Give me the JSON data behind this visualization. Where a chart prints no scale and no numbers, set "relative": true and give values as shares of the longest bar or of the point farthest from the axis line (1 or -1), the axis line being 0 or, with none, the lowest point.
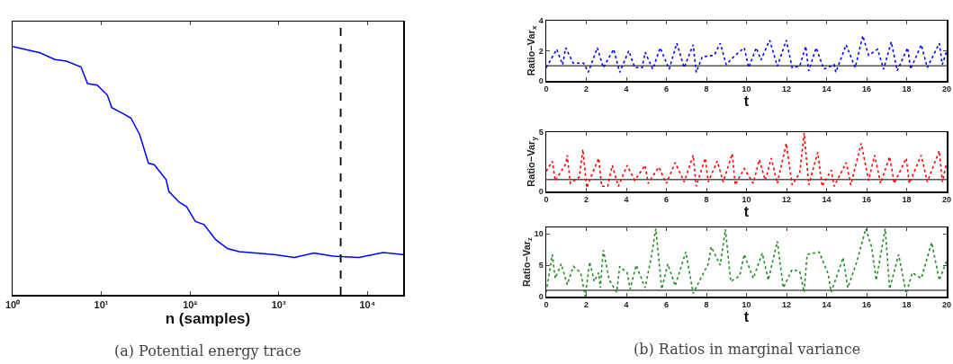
{
  "chart_data": [
    {
      "type": "line",
      "relative": true,
      "xlabel": "n (samples)",
      "annotations": [
        "(a) Potential energy trace"
      ],
      "log": "x",
      "grid": false,
      "marker": "none",
      "line_style": "solid",
      "tick_labels": "x",
      "xlim": [
        1,
        25300
      ],
      "xticks": [
        {
          "value": 1,
          "label": "10⁰"
        },
        {
          "value": 10,
          "label": "10¹"
        },
        {
          "value": 100,
          "label": "10²"
        },
        {
          "value": 1000,
          "label": "10³"
        },
        {
          "value": 10000,
          "label": "10⁴"
        }
      ],
      "ref_lines": [
        {
          "axis": "x",
          "value": 5000,
          "label": null,
          "color": "#000000",
          "line_style": "dashed"
        }
      ],
      "series": [
        {
          "color": "#0000ff",
          "x": [
            1,
            2.04,
            3,
            4.05,
            5.9,
            7,
            9,
            11.7,
            13.1,
            17.8,
            21.6,
            27.1,
            34,
            39.5,
            53.7,
            57.8,
            75.5,
            91.2,
            115,
            144,
            195,
            265,
            358,
            892,
            1500,
            2500,
            4080,
            8000,
            15000,
            25300
          ],
          "values": [
            1,
            0.974,
            0.947,
            0.941,
            0.917,
            0.85,
            0.844,
            0.804,
            0.754,
            0.729,
            0.711,
            0.645,
            0.53,
            0.524,
            0.464,
            0.416,
            0.373,
            0.355,
            0.295,
            0.283,
            0.222,
            0.186,
            0.174,
            0.162,
            0.15,
            0.168,
            0.156,
            0.15,
            0.17,
            0.162
          ]
        }
      ]
    },
    {
      "type": "line",
      "xlabel": "t",
      "ylabel": "Ratio−Var$_{x}$",
      "grid": false,
      "marker": "none",
      "line_style": "dotted",
      "xlim": [
        0,
        20
      ],
      "xticks": [
        0,
        2,
        4,
        6,
        8,
        10,
        12,
        14,
        16,
        18,
        20
      ],
      "ylim": [
        0,
        4
      ],
      "yticks": [
        0,
        2,
        4
      ],
      "ref_lines": [
        {
          "axis": "y",
          "value": 1,
          "label": null,
          "color": "#555555",
          "line_style": "solid"
        }
      ],
      "series": [
        {
          "color": "#0000ff",
          "x": [
            0,
            0.52,
            0.82,
            0.97,
            1.35,
            1.87,
            2.1,
            2.55,
            2.85,
            3.37,
            3.67,
            4.12,
            4.42,
            4.79,
            4.94,
            5.32,
            5.69,
            6.14,
            6.52,
            6.89,
            7.34,
            7.49,
            7.79,
            8.39,
            8.69,
            8.99,
            9.36,
            9.89,
            10.11,
            10.49,
            10.72,
            11.16,
            11.54,
            11.99,
            12.28,
            12.66,
            12.96,
            13.11,
            13.48,
            13.86,
            14.38,
            14.46,
            14.98,
            15.43,
            15.81,
            16.1,
            16.55,
            16.85,
            17.23,
            17.53,
            18.05,
            18.2,
            18.73,
            19.03,
            19.63,
            19.78,
            20
          ],
          "values": [
            0.88,
            2.1,
            1.08,
            2.2,
            1.18,
            1.18,
            0.57,
            2.2,
            0.88,
            2.1,
            0.57,
            2,
            0.88,
            0.88,
            1.9,
            0.78,
            2.2,
            0.78,
            2.5,
            0.88,
            2.4,
            0.57,
            1.6,
            1.7,
            2.5,
            1.08,
            1.6,
            2.2,
            0.88,
            2.2,
            1.39,
            2.7,
            0.98,
            2.7,
            0.88,
            0.98,
            2.3,
            0.67,
            2.2,
            0.78,
            1.08,
            0.57,
            2.4,
            0.88,
            3,
            1.7,
            2.1,
            0.78,
            2.6,
            0.67,
            2.2,
            0.78,
            2.4,
            0.88,
            2.5,
            1.08,
            2
          ]
        }
      ]
    },
    {
      "type": "line",
      "xlabel": "t",
      "ylabel": "Ratio−Var$_{y}$",
      "grid": false,
      "marker": "none",
      "line_style": "dotted",
      "xlim": [
        0,
        20
      ],
      "xticks": [
        0,
        2,
        4,
        6,
        8,
        10,
        12,
        14,
        16,
        18,
        20
      ],
      "ylim": [
        0,
        5
      ],
      "yticks": [
        0,
        5
      ],
      "ref_lines": [
        {
          "axis": "y",
          "value": 1,
          "label": null,
          "color": "#555555",
          "line_style": "solid"
        }
      ],
      "series": [
        {
          "color": "#ff0000",
          "x": [
            0,
            0.3,
            0.45,
            0.97,
            1.05,
            1.2,
            1.65,
            1.83,
            2.02,
            2.25,
            2.62,
            2.77,
            3.07,
            3.3,
            3.6,
            4.04,
            4.42,
            4.94,
            5.09,
            5.62,
            6,
            6.44,
            6.89,
            7.34,
            7.49,
            7.94,
            8.09,
            8.54,
            8.84,
            9.29,
            9.44,
            9.89,
            10.34,
            10.64,
            10.94,
            11.24,
            11.54,
            11.99,
            12.28,
            12.66,
            12.88,
            13.11,
            13.56,
            13.78,
            14.23,
            14.38,
            14.98,
            15.21,
            15.73,
            16.1,
            16.4,
            16.7,
            17.15,
            17.38,
            17.98,
            18.13,
            18.73,
            19.03,
            19.63,
            19.78,
            20
          ],
          "values": [
            1.7,
            2.55,
            0.9,
            2.3,
            3.05,
            0.7,
            1.2,
            3.55,
            0.3,
            1.3,
            2.8,
            0.43,
            0.43,
            2.2,
            0.43,
            2.2,
            0.93,
            2.2,
            0.68,
            2.05,
            0.68,
            2.43,
            0.8,
            3.05,
            0.43,
            2.8,
            0.8,
            2.55,
            0.8,
            3.18,
            0.55,
            1.93,
            0.68,
            2.68,
            0.93,
            2.8,
            0.68,
            4.05,
            0.55,
            1.55,
            4.93,
            0.55,
            3.3,
            0.43,
            1.8,
            0.43,
            2.43,
            0.55,
            4.05,
            0.93,
            3.05,
            0.68,
            2.93,
            0.68,
            2.8,
            0.68,
            3.05,
            0.8,
            3.43,
            0.8,
            2.43
          ]
        }
      ]
    },
    {
      "type": "line",
      "xlabel": "t",
      "ylabel": "Ratio−Var$_{z}$",
      "annotations": [
        "(b) Ratios in marginal variance"
      ],
      "grid": false,
      "marker": "none",
      "line_style": "dotted",
      "xlim": [
        0,
        20
      ],
      "xticks": [
        0,
        2,
        4,
        6,
        8,
        10,
        12,
        14,
        16,
        18,
        20
      ],
      "ylim": [
        0,
        11
      ],
      "yticks": [
        0,
        5,
        10
      ],
      "ref_lines": [
        {
          "axis": "y",
          "value": 1,
          "label": null,
          "color": "#555555",
          "line_style": "solid"
        }
      ],
      "series": [
        {
          "color": "#228b22",
          "x": [
            0,
            0.3,
            0.45,
            0.75,
            1.05,
            1.35,
            1.72,
            1.95,
            2.17,
            2.4,
            2.62,
            2.7,
            2.85,
            3.15,
            3.52,
            3.67,
            4.04,
            4.19,
            4.49,
            4.94,
            5.24,
            5.47,
            5.77,
            6.07,
            6.44,
            6.97,
            7.34,
            7.64,
            8.09,
            8.24,
            8.69,
            8.95,
            9.21,
            9.66,
            9.89,
            10.34,
            10.79,
            11.09,
            11.54,
            11.84,
            12.28,
            12.66,
            12.88,
            13.03,
            13.63,
            14.08,
            14.23,
            14.83,
            15.06,
            15.51,
            15.96,
            16.25,
            16.48,
            16.93,
            17.15,
            17.6,
            17.98,
            18.28,
            18.73,
            19.25,
            19.63,
            20
          ],
          "values": [
            0.7,
            6.7,
            2.9,
            5.2,
            1.9,
            4.8,
            3.8,
            0,
            5.5,
            2.4,
            3.8,
            1.4,
            7.4,
            2.6,
            0.7,
            4.8,
            3.8,
            1.2,
            5,
            1.4,
            6.2,
            10.8,
            1.2,
            5.2,
            1.7,
            7.1,
            0.5,
            2.4,
            5.2,
            7.9,
            5,
            10.7,
            2.4,
            3.3,
            6.7,
            2.9,
            6.9,
            2.6,
            8.8,
            1.4,
            4.3,
            4,
            0.7,
            6.7,
            7.1,
            3.6,
            0.7,
            6.2,
            1.4,
            5.5,
            10.8,
            7.9,
            2.6,
            10.8,
            1.2,
            6.7,
            0.5,
            3.8,
            2.9,
            8.6,
            2.6,
            5.7
          ]
        }
      ]
    }
  ]
}
